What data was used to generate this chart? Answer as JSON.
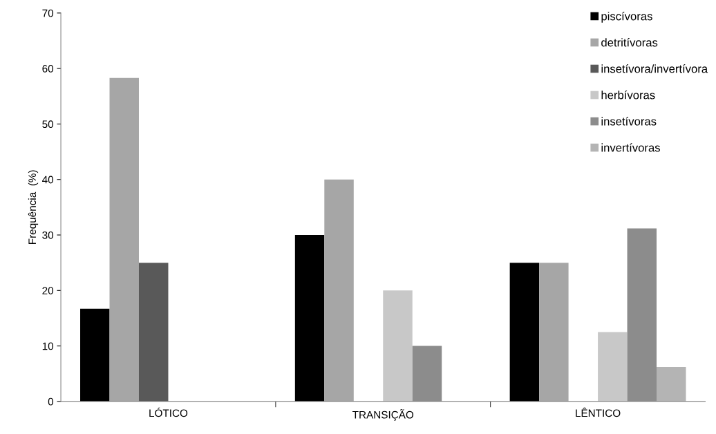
{
  "chart_data": {
    "type": "bar",
    "ylabel": "Frequência  (%)",
    "categories": [
      "LÓTICO",
      "TRANSIÇÃO",
      "LÊNTICO"
    ],
    "series": [
      {
        "name": "piscívoras",
        "color": "#000000",
        "values": [
          16.7,
          30,
          25
        ]
      },
      {
        "name": "detritívoras",
        "color": "#a6a6a6",
        "values": [
          58.3,
          40,
          25
        ]
      },
      {
        "name": "insetívora/invertívora",
        "color": "#595959",
        "values": [
          25,
          0,
          0
        ]
      },
      {
        "name": "herbívoras",
        "color": "#c8c8c8",
        "values": [
          0,
          20,
          12.5
        ]
      },
      {
        "name": "insetívoras",
        "color": "#8c8c8c",
        "values": [
          0,
          10,
          31.2
        ]
      },
      {
        "name": "invertívoras",
        "color": "#b4b4b4",
        "values": [
          0,
          0,
          6.2
        ]
      }
    ],
    "ylim": [
      0,
      70
    ],
    "yticks": [
      0,
      10,
      20,
      30,
      40,
      50,
      60,
      70
    ],
    "grid": false,
    "legend": "top right"
  }
}
